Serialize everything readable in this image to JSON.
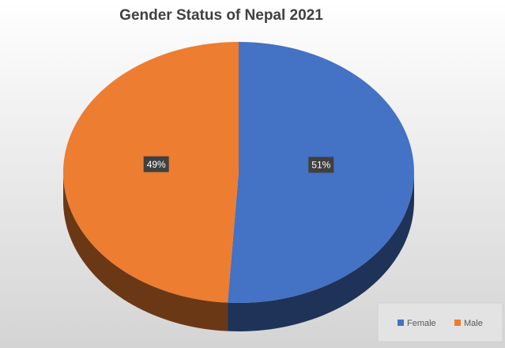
{
  "chart_data": {
    "type": "pie",
    "title": "Gender Status of Nepal 2021",
    "categories": [
      "Female",
      "Male"
    ],
    "values": [
      51,
      49
    ],
    "value_labels": [
      "51%",
      "49%"
    ],
    "colors": [
      "#4472c4",
      "#ed7d31"
    ],
    "legend": "bottom-right"
  }
}
